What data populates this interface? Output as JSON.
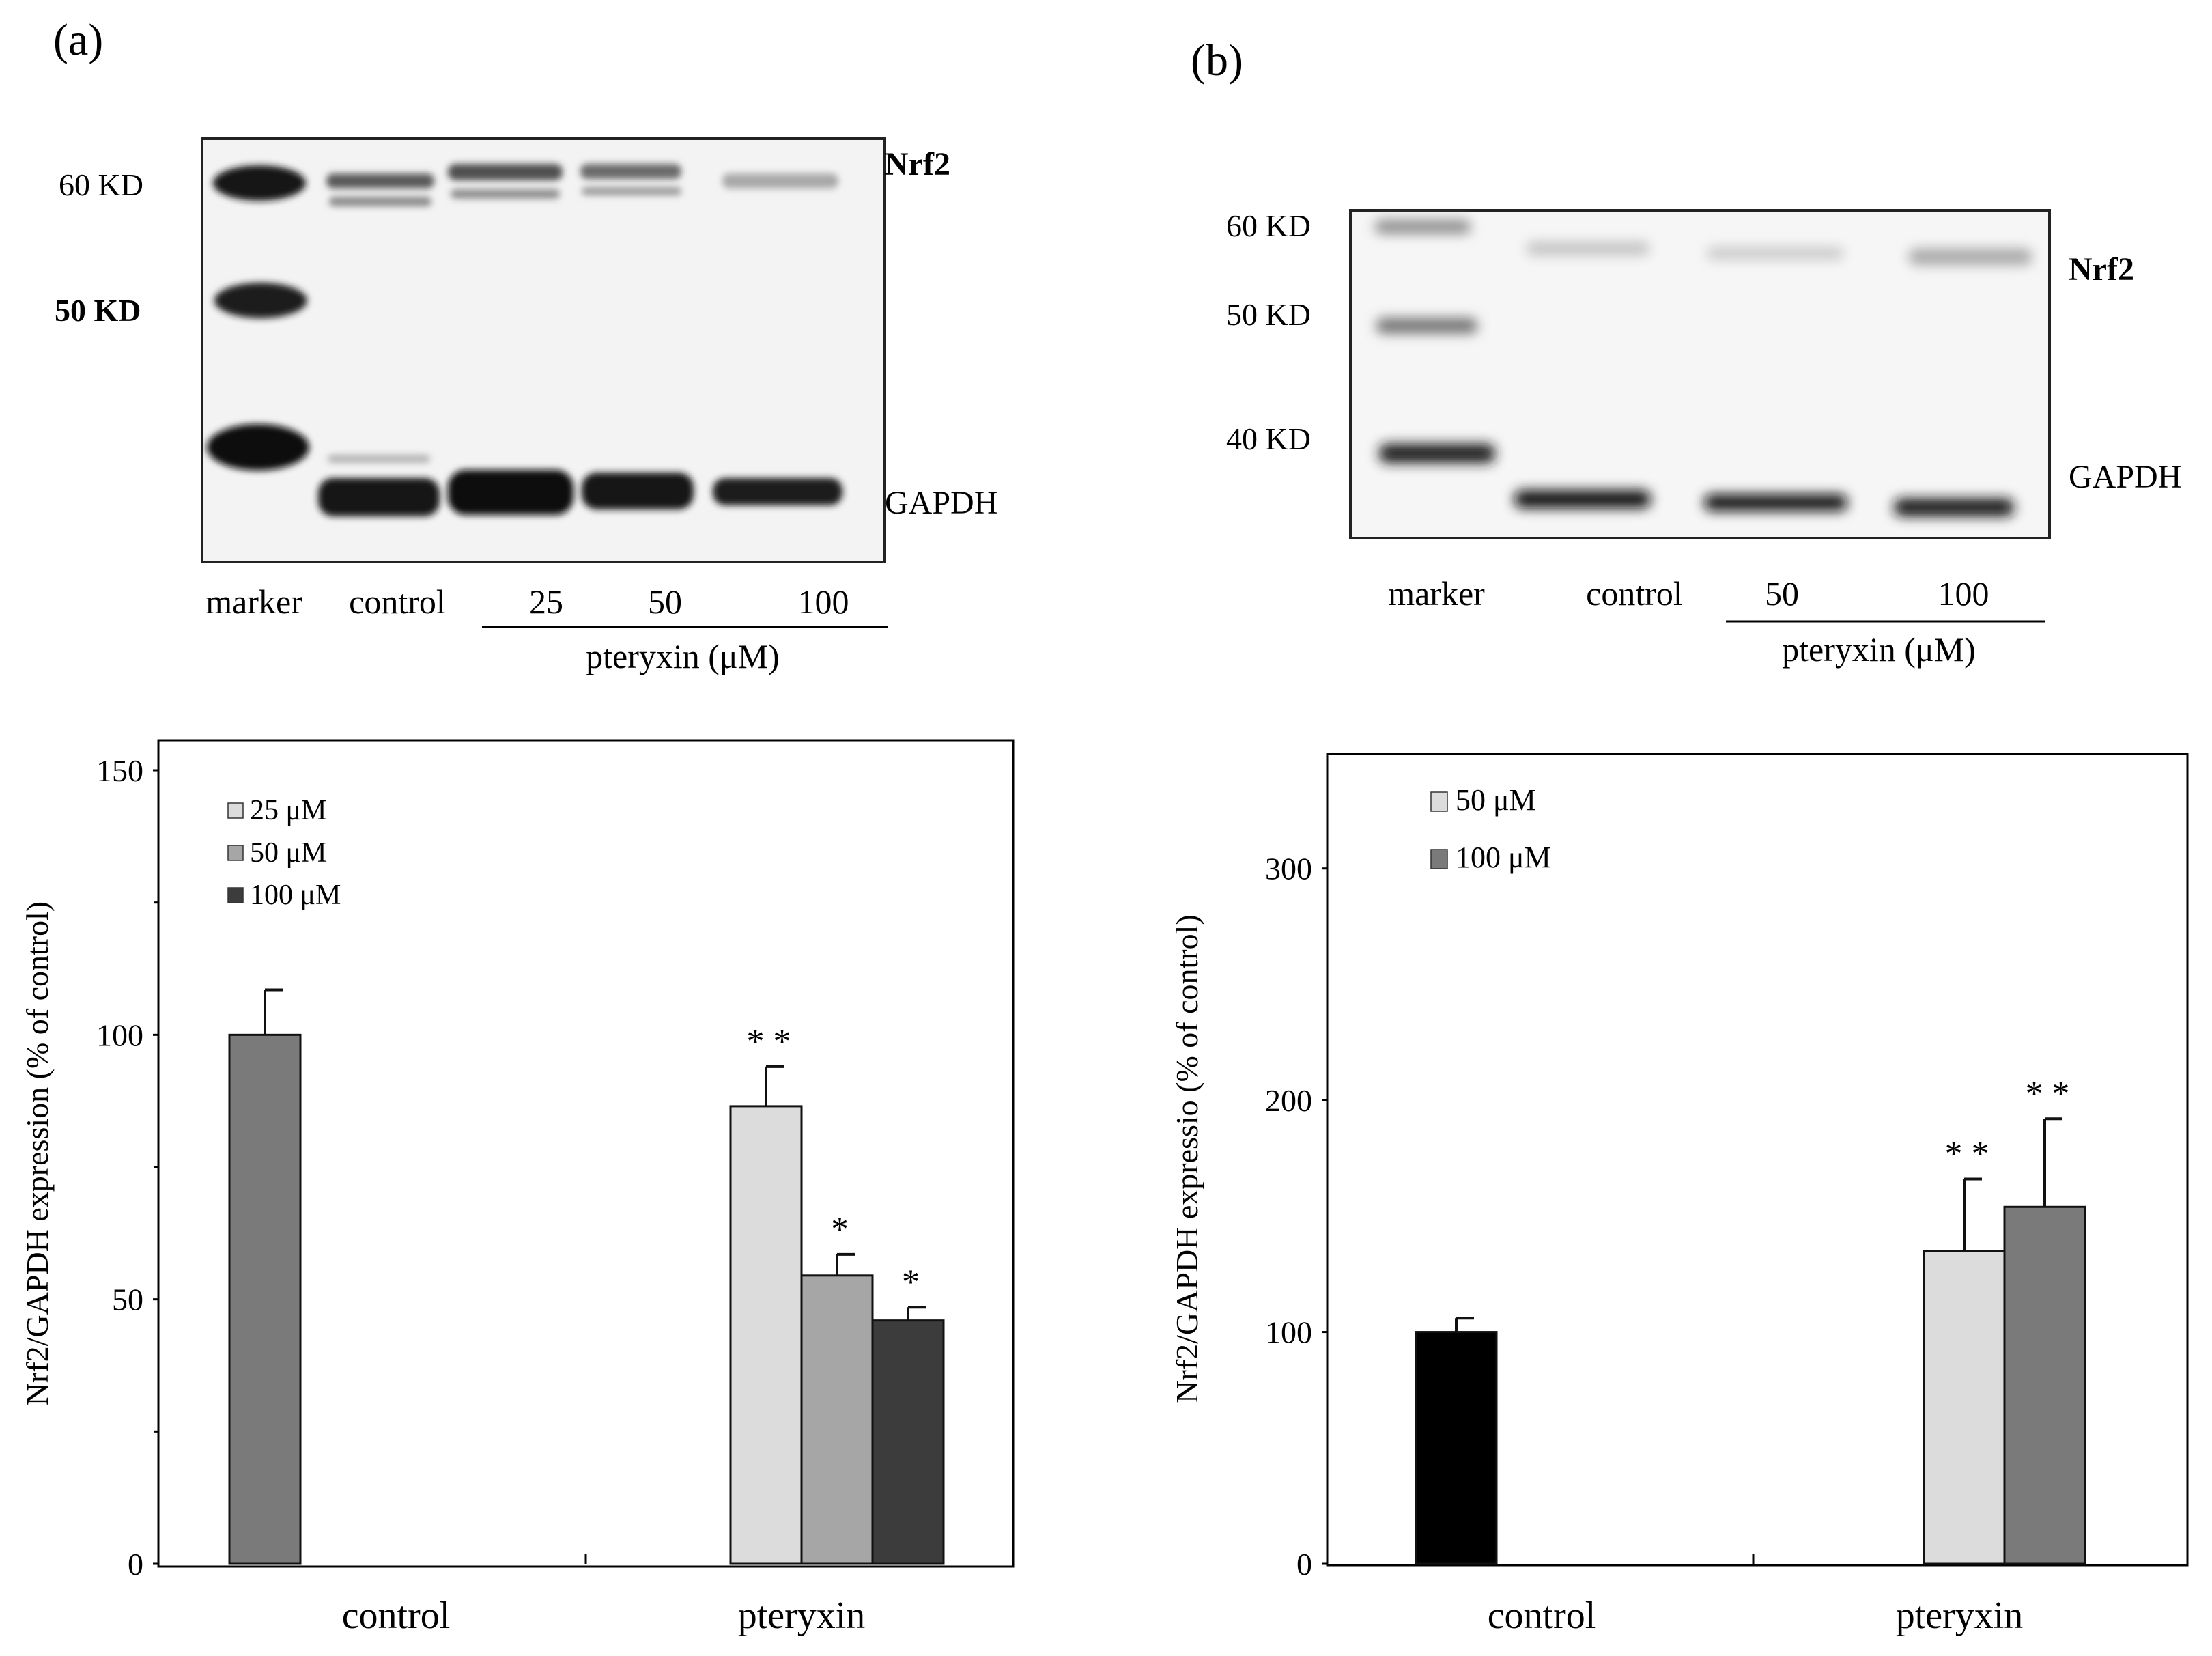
{
  "panels": [
    {
      "label": "(a)",
      "blot": {
        "markers": [
          "60 KD",
          "50 KD"
        ],
        "bands": [
          "Nrf2",
          "GAPDH"
        ],
        "lanes": [
          "marker",
          "control",
          "25",
          "50",
          "100"
        ],
        "treatment": "pteryxin (μM)"
      }
    },
    {
      "label": "(b)",
      "blot": {
        "markers": [
          "60 KD",
          "50 KD",
          "40 KD"
        ],
        "bands": [
          "Nrf2",
          "GAPDH"
        ],
        "lanes": [
          "marker",
          "control",
          "50",
          "100"
        ],
        "treatment": "pteryxin (μM)"
      }
    }
  ],
  "colors": {
    "control_a": "#7a7a7a",
    "s25": "#dcdcdc",
    "s50a": "#a6a6a6",
    "s100a": "#3c3c3c",
    "control_b": "#000000",
    "s50b": "#dcdcdc",
    "s100b": "#7a7a7a"
  },
  "chart_data": [
    {
      "type": "bar",
      "categories": [
        "control",
        "pteryxin"
      ],
      "ylabel": "Nrf2/GAPDH expression (% of control)",
      "ylim": [
        0,
        150
      ],
      "yticks": [
        0,
        50,
        100,
        150
      ],
      "grid": false,
      "legend": "top-left",
      "series": [
        {
          "name": "",
          "category": "control",
          "value": 100,
          "error": 8.5,
          "sig": "",
          "color_key": "control_a"
        },
        {
          "name": "25 μM",
          "category": "pteryxin",
          "value": 86.5,
          "error": 7.5,
          "sig": "* *",
          "color_key": "s25"
        },
        {
          "name": "50 μM",
          "category": "pteryxin",
          "value": 54.5,
          "error": 4,
          "sig": "*",
          "color_key": "s50a"
        },
        {
          "name": "100 μM",
          "category": "pteryxin",
          "value": 46,
          "error": 2.5,
          "sig": "*",
          "color_key": "s100a"
        }
      ]
    },
    {
      "type": "bar",
      "categories": [
        "control",
        "pteryxin"
      ],
      "ylabel": "Nrf2/GAPDH expressio (% of control)",
      "ylim": [
        0,
        350
      ],
      "yticks": [
        0,
        100,
        200,
        300
      ],
      "grid": false,
      "legend": "top-left",
      "series": [
        {
          "name": "",
          "category": "control",
          "value": 100,
          "error": 6,
          "sig": "",
          "color_key": "control_b"
        },
        {
          "name": "50 μM",
          "category": "pteryxin",
          "value": 135,
          "error": 31,
          "sig": "* *",
          "color_key": "s50b"
        },
        {
          "name": "100 μM",
          "category": "pteryxin",
          "value": 154,
          "error": 38,
          "sig": "* *",
          "color_key": "s100b"
        }
      ]
    }
  ]
}
